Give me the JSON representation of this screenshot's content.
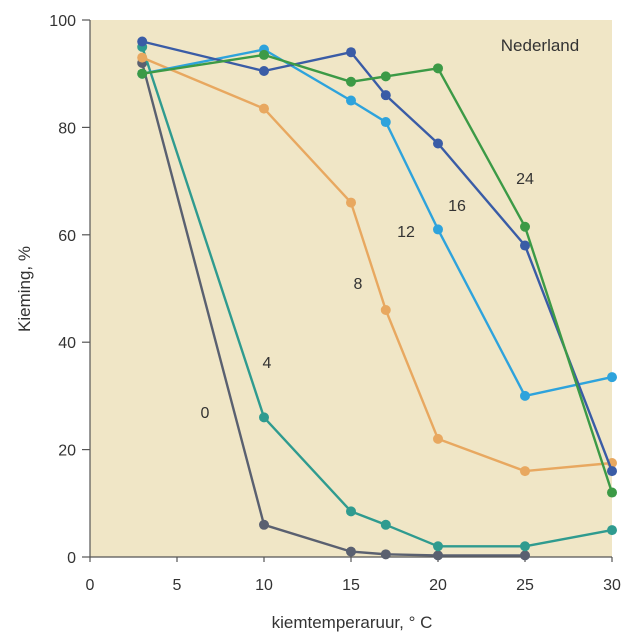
{
  "chart_data": {
    "type": "line",
    "annotation": "Nederland",
    "xlabel": "kiemtemperaruur, ° C",
    "ylabel": "Kieming, %",
    "xlim": [
      0,
      30
    ],
    "ylim": [
      0,
      100
    ],
    "xticks": [
      0,
      5,
      10,
      15,
      20,
      25,
      30
    ],
    "yticks": [
      0,
      20,
      40,
      60,
      80,
      100
    ],
    "grid": false,
    "legend": "none",
    "series": [
      {
        "name": "0",
        "color": "#5a6070",
        "x": [
          3,
          10,
          15,
          17,
          20,
          25
        ],
        "y": [
          92,
          6,
          1,
          0.5,
          0.3,
          0.3
        ]
      },
      {
        "name": "4",
        "color": "#2f9b8f",
        "x": [
          3,
          10,
          15,
          17,
          20,
          25,
          30
        ],
        "y": [
          95,
          26,
          8.5,
          6,
          2,
          2,
          5
        ]
      },
      {
        "name": "8",
        "color": "#e8a860",
        "x": [
          3,
          10,
          15,
          17,
          20,
          25,
          30
        ],
        "y": [
          93,
          83.5,
          66,
          46,
          22,
          16,
          17.5
        ]
      },
      {
        "name": "12",
        "color": "#2ea3dc",
        "x": [
          3,
          10,
          15,
          17,
          20,
          25,
          30
        ],
        "y": [
          90,
          94.5,
          85,
          81,
          61,
          30,
          33.5
        ]
      },
      {
        "name": "16",
        "color": "#3a5ca6",
        "x": [
          3,
          10,
          15,
          17,
          20,
          25,
          30
        ],
        "y": [
          96,
          90.5,
          94,
          86,
          77,
          58,
          16
        ]
      },
      {
        "name": "24",
        "color": "#3c9a46",
        "x": [
          3,
          10,
          15,
          17,
          20,
          25,
          30
        ],
        "y": [
          90,
          93.5,
          88.5,
          89.5,
          91,
          61.5,
          12
        ]
      }
    ]
  },
  "colors": {
    "plot_background": "#f0e6c6",
    "axis": "#555555"
  }
}
